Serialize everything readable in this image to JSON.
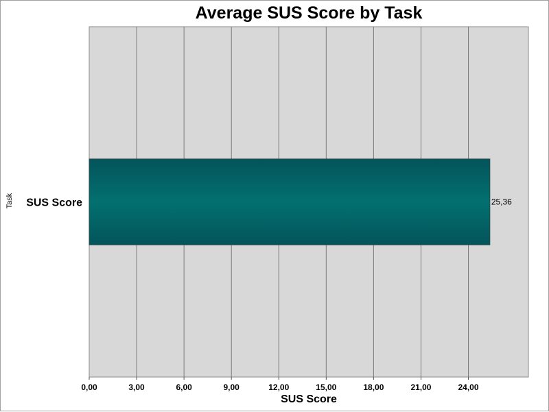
{
  "chart_data": {
    "type": "bar",
    "orientation": "horizontal",
    "title": "Average SUS Score by Task",
    "xlabel": "SUS Score",
    "ylabel": "Task",
    "categories": [
      "SUS Score"
    ],
    "series": [
      {
        "values": [
          25.36
        ],
        "data_labels": [
          "25,36"
        ]
      }
    ],
    "xlim": [
      0,
      27.8
    ],
    "x_ticks": [
      0,
      3,
      6,
      9,
      12,
      15,
      18,
      21,
      24
    ],
    "x_tick_labels": [
      "0,00",
      "3,00",
      "6,00",
      "9,00",
      "12,00",
      "15,00",
      "18,00",
      "21,00",
      "24,00"
    ],
    "grid": true,
    "legend": "none",
    "colors": {
      "bar_dark": "#03545b",
      "bar_light": "#03706f",
      "plot_background": "#d8d8d8",
      "grid": "#7a7a7a"
    }
  }
}
